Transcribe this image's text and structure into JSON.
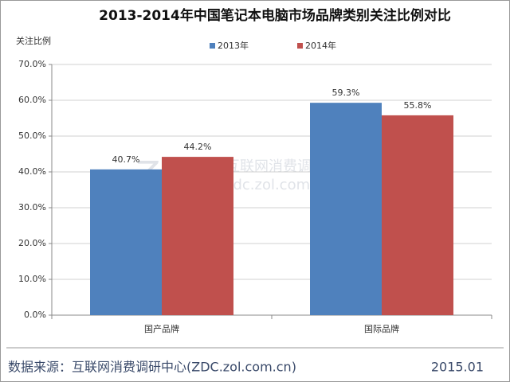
{
  "chart_data": {
    "type": "bar",
    "title": "2013-2014年中国笔记本电脑市场品牌类别关注比例对比",
    "y_label": "关注比例",
    "categories": [
      "国产品牌",
      "国际品牌"
    ],
    "series": [
      {
        "name": "2013年",
        "color": "#4f81bd",
        "values": [
          40.7,
          59.3
        ],
        "value_labels": [
          "40.7%",
          "59.3%"
        ]
      },
      {
        "name": "2014年",
        "color": "#c0504d",
        "values": [
          44.2,
          55.8
        ],
        "value_labels": [
          "44.2%",
          "55.8%"
        ]
      }
    ],
    "ylim": [
      0,
      70
    ],
    "yticks": [
      {
        "value": 0,
        "label": "0.0%"
      },
      {
        "value": 10,
        "label": "10.0%"
      },
      {
        "value": 20,
        "label": "20.0%"
      },
      {
        "value": 30,
        "label": "30.0%"
      },
      {
        "value": 40,
        "label": "40.0%"
      },
      {
        "value": 50,
        "label": "50.0%"
      },
      {
        "value": 60,
        "label": "60.0%"
      },
      {
        "value": 70,
        "label": "70.0%"
      }
    ],
    "grid": true,
    "legend": "top",
    "watermark": [
      "ZDC",
      "互联网消费调研中心",
      "zdc.zol.com.cn"
    ],
    "source": "数据来源：互联网消费调研中心(ZDC.zol.com.cn)",
    "date": "2015.01"
  }
}
